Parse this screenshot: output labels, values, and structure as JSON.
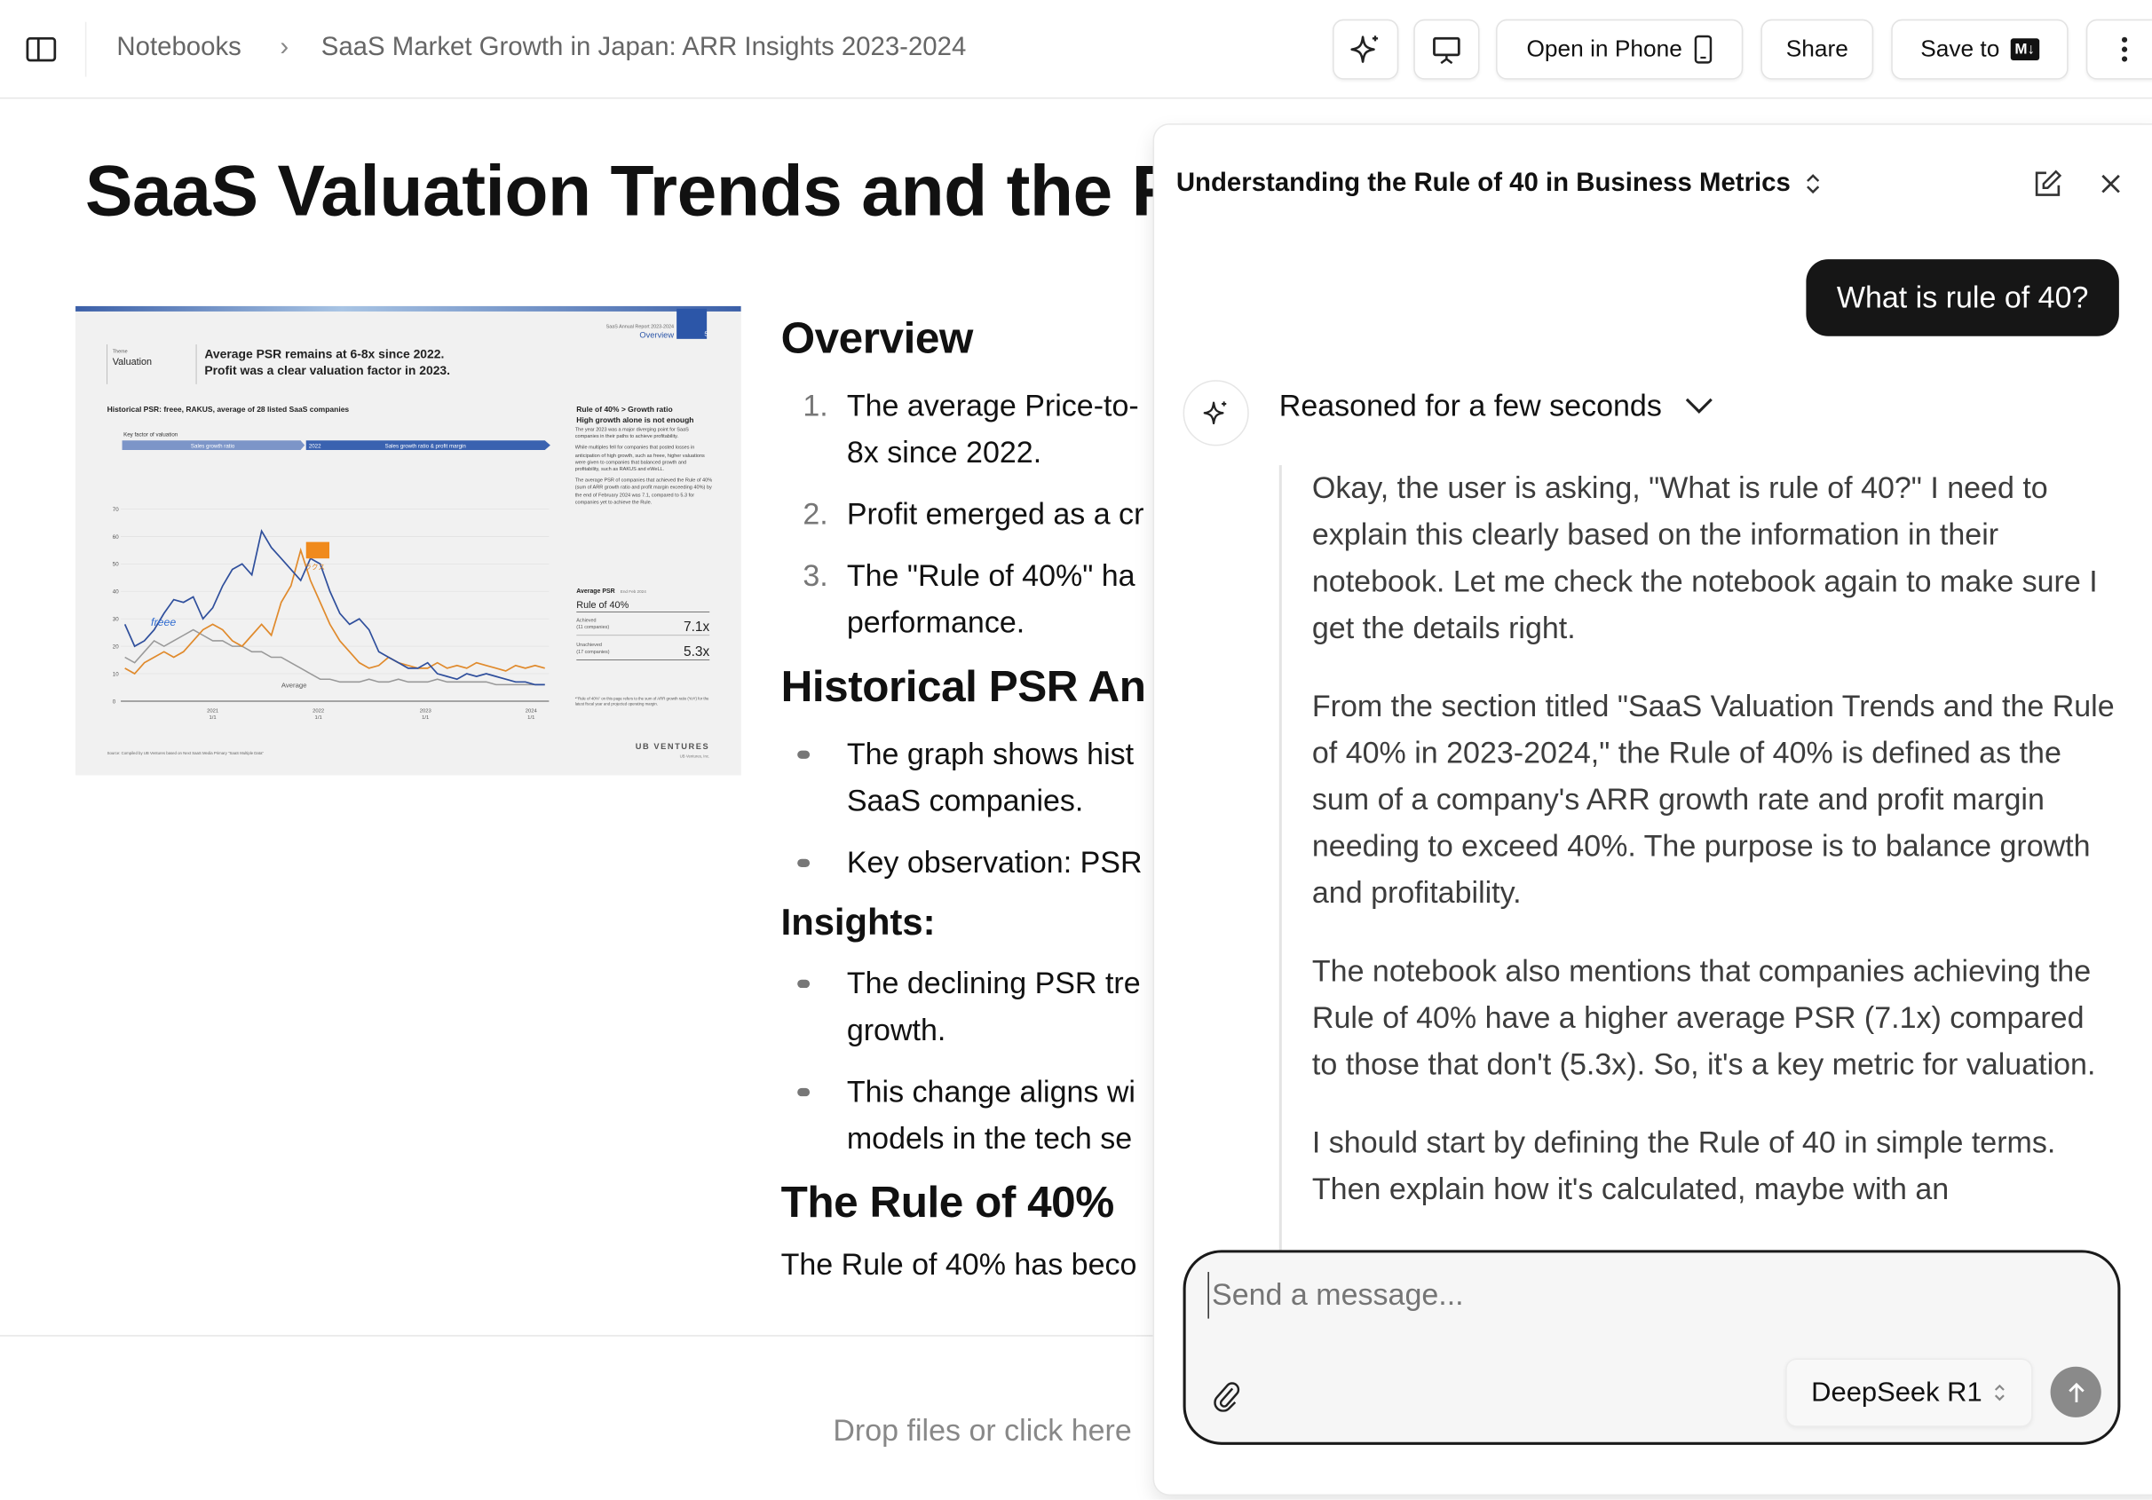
{
  "topbar": {
    "breadcrumb_root": "Notebooks",
    "breadcrumb_current": "SaaS Market Growth in Japan: ARR Insights 2023-2024",
    "open_in_phone_label": "Open in Phone",
    "share_label": "Share",
    "save_to_label": "Save to",
    "save_to_badge": "M↓"
  },
  "document": {
    "title": "SaaS Valuation Trends and the R",
    "slide": {
      "header_small": "SaaS Annual Report 2023-2024",
      "section": "Overview",
      "page": "5",
      "theme_label": "Theme",
      "theme": "Valuation",
      "headline_1": "Average PSR remains at 6-8x since 2022.",
      "headline_2": "Profit was a clear valuation factor in 2023.",
      "chart_title": "Historical PSR: freee, RAKUS, average of 28 listed SaaS companies",
      "key_factor": "Key factor of valuation",
      "band_1": "Sales growth ratio",
      "band_2_year": "2022",
      "band_2": "Sales growth ratio & profit margin",
      "y_ticks": [
        "0",
        "10",
        "20",
        "30",
        "40",
        "50",
        "60",
        "70"
      ],
      "x_ticks": [
        [
          "2021",
          "1/1"
        ],
        [
          "2022",
          "1/1"
        ],
        [
          "2023",
          "1/1"
        ],
        [
          "2024",
          "1/1"
        ]
      ],
      "label_freee": "freee",
      "label_rakus": "ラクス",
      "label_average": "Average",
      "side_title_1": "Rule of 40% > Growth ratio",
      "side_title_2": "High growth alone is not enough",
      "side_para_1": "The year 2023 was a major diverging point for SaaS companies in their paths to achieve profitability.",
      "side_para_2": "While multiples fell for companies that posted losses in anticipation of high growth, such as freee, higher valuations were given to companies that balanced growth and profitability, such as RAKUS and eWeLL.",
      "side_para_3": "The average PSR of companies that achieved the Rule of 40% (sum of ARR growth ratio and profit margin exceeding 40%) by the end of February 2024 was 7.1, compared to 5.3 for companies yet to achieve the Rule.",
      "avg_psr_label": "Average PSR",
      "avg_psr_date": "End Feb 2024",
      "rule_label": "Rule of 40%",
      "achieved_label": "Achieved",
      "achieved_count": "(11 companies)",
      "achieved_value": "7.1x",
      "unachieved_label": "Unachieved",
      "unachieved_count": "(17 companies)",
      "unachieved_value": "5.3x",
      "footnote": "*\"Rule of 40%\" on this page refers to the sum of ARR growth ratio (YoY) for the latest fiscal year and projected operating margin.",
      "source": "Source: Compiled by UB Ventures based on Next SaaS Media Primary \"SaaS Multiple Data\"",
      "logo": "UB VENTURES",
      "logo_sub": "UB Ventures, Inc.",
      "colors": {
        "freee": "#2f4f9c",
        "rakus": "#e08a2c",
        "average": "#999999",
        "band_light": "#7c95c8",
        "band_dark": "#3a62b0"
      }
    },
    "overview_heading": "Overview",
    "overview_items": [
      {
        "marker": "1.",
        "lines": [
          "The average Price-to-",
          "8x since 2022."
        ]
      },
      {
        "marker": "2.",
        "lines": [
          "Profit emerged as a cr"
        ]
      },
      {
        "marker": "3.",
        "lines": [
          "The \"Rule of 40%\" ha",
          "performance."
        ]
      }
    ],
    "historical_heading": "Historical PSR An",
    "historical_items": [
      {
        "lines": [
          "The graph shows hist",
          "SaaS companies."
        ]
      },
      {
        "lines": [
          "Key observation: PSR"
        ]
      }
    ],
    "insights_heading": "Insights:",
    "insights_items": [
      {
        "lines": [
          "The declining PSR tre",
          "growth."
        ]
      },
      {
        "lines": [
          "This change aligns wi",
          "models in the tech se"
        ]
      }
    ],
    "rule_heading": "The Rule of 40%",
    "rule_text": "The Rule of 40% has beco",
    "drop_text": "Drop files or click here"
  },
  "chat": {
    "title": "Understanding the Rule of 40 in Business Metrics",
    "user_message": "What is rule of 40?",
    "reasoning_label": "Reasoned for a few seconds",
    "reasoning_paragraphs": [
      "Okay, the user is asking, \"What is rule of 40?\" I need to explain this clearly based on the information in their notebook. Let me check the notebook again to make sure I get the details right.",
      "From the section titled \"SaaS Valuation Trends and the Rule of 40% in 2023-2024,\" the Rule of 40% is defined as the sum of a company's ARR growth rate and profit margin needing to exceed 40%. The purpose is to balance growth and profitability.",
      "The notebook also mentions that companies achieving the Rule of 40% have a higher average PSR (7.1x) compared to those that don't (5.3x). So, it's a key metric for valuation.",
      "I should start by defining the Rule of 40 in simple terms. Then explain how it's calculated, maybe with an"
    ],
    "input_placeholder": "Send a message...",
    "model": "DeepSeek R1"
  }
}
